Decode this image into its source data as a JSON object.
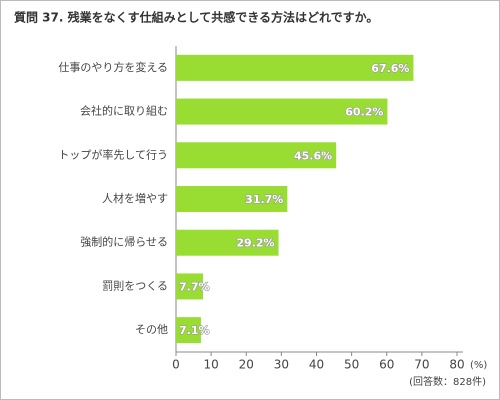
{
  "chart_data": {
    "type": "bar",
    "orientation": "horizontal",
    "title": "質問 37. 残業をなくす仕組みとして共感できる方法はどれですか。",
    "categories": [
      "仕事のやり方を変える",
      "会社的に取り組む",
      "トップが率先して行う",
      "人材を増やす",
      "強制的に帰らせる",
      "罰則をつくる",
      "その他"
    ],
    "values": [
      67.6,
      60.2,
      45.6,
      31.7,
      29.2,
      7.7,
      7.1
    ],
    "value_labels": [
      "67.6%",
      "60.2%",
      "45.6%",
      "31.7%",
      "29.2%",
      "7.7%",
      "7.1%"
    ],
    "color": "#99dd33",
    "xlim": [
      0,
      80
    ],
    "xticks": [
      0,
      10,
      20,
      30,
      40,
      50,
      60,
      70,
      80
    ],
    "x_unit": "(%)",
    "note": "(回答数：828件)",
    "grid": false
  }
}
